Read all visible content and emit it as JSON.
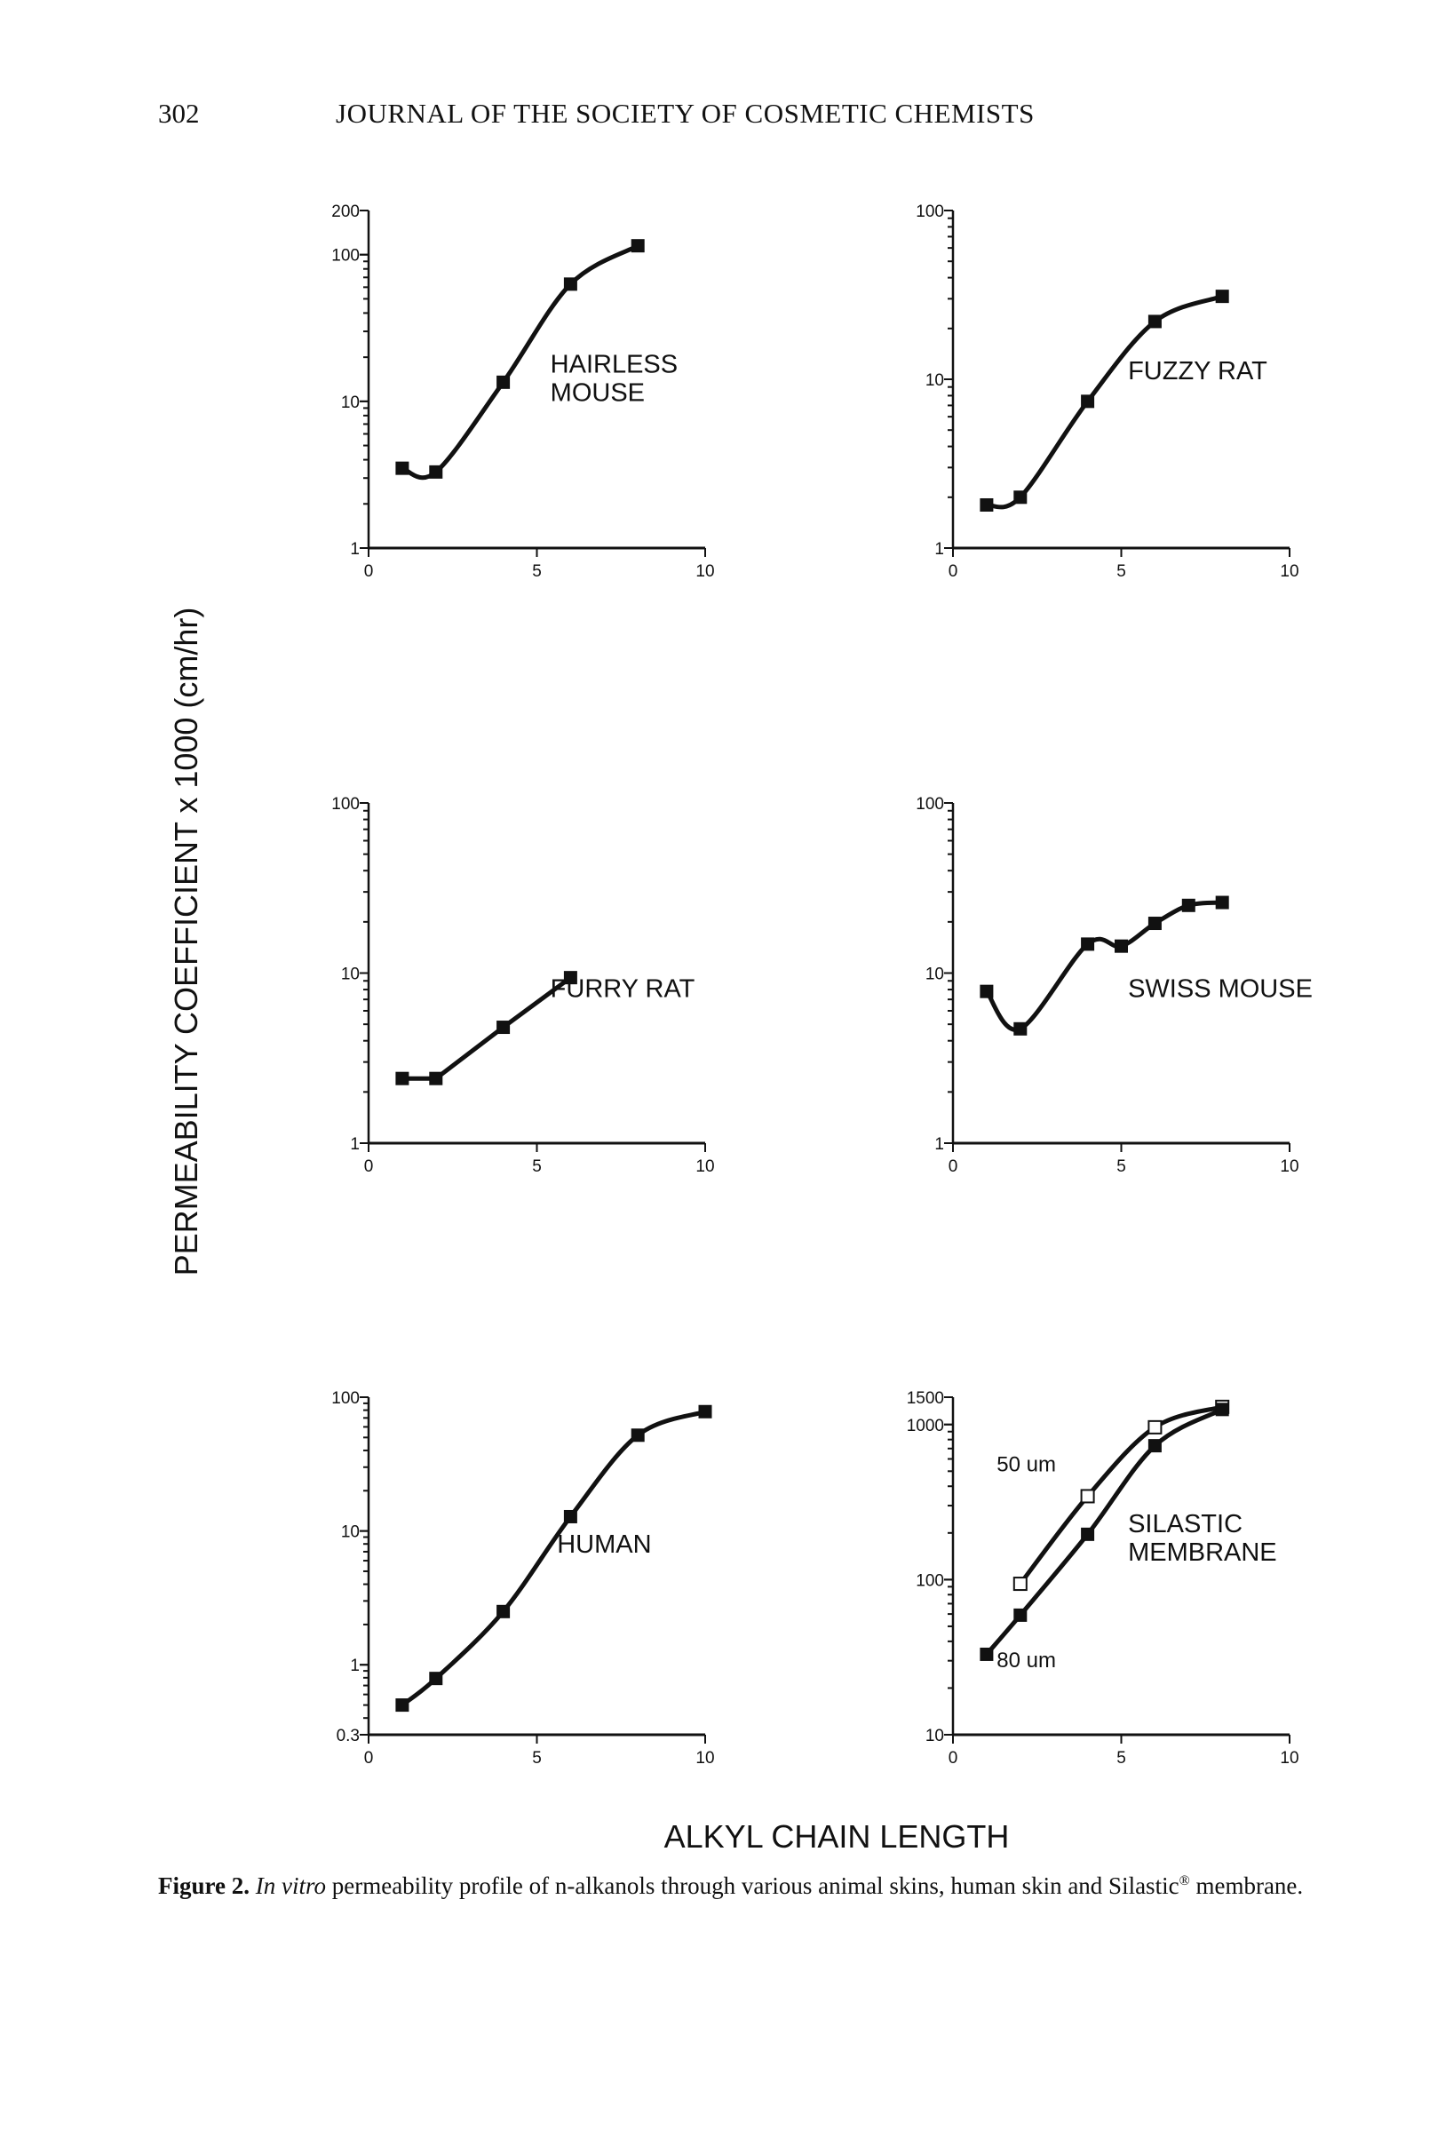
{
  "header": {
    "page_number": "302",
    "journal_title": "JOURNAL OF THE SOCIETY OF COSMETIC CHEMISTS"
  },
  "caption": {
    "figure_label": "Figure 2.",
    "italic_part": "In vitro",
    "text_part1": " permeability profile of n-alkanols through various animal skins, human skin and Silastic",
    "registered_mark": "®",
    "text_part2": " membrane."
  },
  "chart_data": {
    "type": "line",
    "shared_ylabel": "PERMEABILITY COEFFICIENT x 1000 (cm/hr)",
    "shared_xlabel": "ALKYL CHAIN LENGTH",
    "panels": [
      {
        "title": "HAIRLESS MOUSE",
        "title_lines": [
          "HAIRLESS",
          "MOUSE"
        ],
        "yscale": "log",
        "ylim": [
          1,
          200
        ],
        "yticks": [
          "1",
          "10",
          "100",
          "200"
        ],
        "ytick_values": [
          1,
          10,
          100,
          200
        ],
        "xlim": [
          0,
          10
        ],
        "xticks": [
          "0",
          "5",
          "10"
        ],
        "series": [
          {
            "name": "hairless mouse",
            "marker": "filled-square",
            "x": [
              1,
              2,
              4,
              6,
              8
            ],
            "y": [
              3.5,
              3.3,
              13.5,
              63,
              115
            ]
          }
        ]
      },
      {
        "title": "FUZZY RAT",
        "title_lines": [
          "FUZZY RAT"
        ],
        "yscale": "log",
        "ylim": [
          1,
          100
        ],
        "yticks": [
          "1",
          "10",
          "100"
        ],
        "ytick_values": [
          1,
          10,
          100
        ],
        "xlim": [
          0,
          10
        ],
        "xticks": [
          "0",
          "5",
          "10"
        ],
        "series": [
          {
            "name": "fuzzy rat",
            "marker": "filled-square",
            "x": [
              1,
              2,
              4,
              6,
              8
            ],
            "y": [
              1.8,
              2.0,
              7.4,
              22,
              31
            ]
          }
        ]
      },
      {
        "title": "FURRY RAT",
        "title_lines": [
          "FURRY RAT"
        ],
        "yscale": "log",
        "ylim": [
          1,
          100
        ],
        "yticks": [
          "1",
          "10",
          "100"
        ],
        "ytick_values": [
          1,
          10,
          100
        ],
        "xlim": [
          0,
          10
        ],
        "xticks": [
          "0",
          "5",
          "10"
        ],
        "series": [
          {
            "name": "furry rat",
            "marker": "filled-square",
            "x": [
              1,
              2,
              4,
              6
            ],
            "y": [
              2.4,
              2.4,
              4.8,
              9.4
            ]
          }
        ]
      },
      {
        "title": "SWISS MOUSE",
        "title_lines": [
          "SWISS MOUSE"
        ],
        "yscale": "log",
        "ylim": [
          1,
          100
        ],
        "yticks": [
          "1",
          "10",
          "100"
        ],
        "ytick_values": [
          1,
          10,
          100
        ],
        "xlim": [
          0,
          10
        ],
        "xticks": [
          "0",
          "5",
          "10"
        ],
        "series": [
          {
            "name": "swiss mouse",
            "marker": "filled-square",
            "x": [
              1,
              2,
              4,
              5,
              6,
              7,
              8
            ],
            "y": [
              7.8,
              4.7,
              14.8,
              14.4,
              19.6,
              25,
              26
            ]
          }
        ]
      },
      {
        "title": "HUMAN",
        "title_lines": [
          "HUMAN"
        ],
        "yscale": "log",
        "ylim": [
          0.3,
          100
        ],
        "yticks": [
          "0.3",
          "1",
          "10",
          "100"
        ],
        "ytick_values": [
          0.3,
          1,
          10,
          100
        ],
        "xlim": [
          0,
          10
        ],
        "xticks": [
          "0",
          "5",
          "10"
        ],
        "series": [
          {
            "name": "human",
            "marker": "filled-square",
            "x": [
              1,
              2,
              4,
              6,
              8,
              10
            ],
            "y": [
              0.5,
              0.79,
              2.5,
              12.8,
              52,
              78
            ]
          }
        ]
      },
      {
        "title": "SILASTIC MEMBRANE",
        "title_lines": [
          "SILASTIC",
          "MEMBRANE"
        ],
        "yscale": "log",
        "ylim": [
          10,
          1500
        ],
        "yticks": [
          "10",
          "100",
          "1000",
          "1500"
        ],
        "ytick_values": [
          10,
          100,
          1000,
          1500
        ],
        "xlim": [
          0,
          10
        ],
        "xticks": [
          "0",
          "5",
          "10"
        ],
        "series": [
          {
            "name": "50 um",
            "marker": "open-square",
            "x": [
              2,
              4,
              6,
              8
            ],
            "y": [
              94,
              345,
              960,
              1300
            ]
          },
          {
            "name": "80 um",
            "marker": "filled-square",
            "x": [
              1,
              2,
              4,
              6,
              8
            ],
            "y": [
              33,
              59,
              196,
              730,
              1250
            ]
          }
        ]
      }
    ]
  }
}
